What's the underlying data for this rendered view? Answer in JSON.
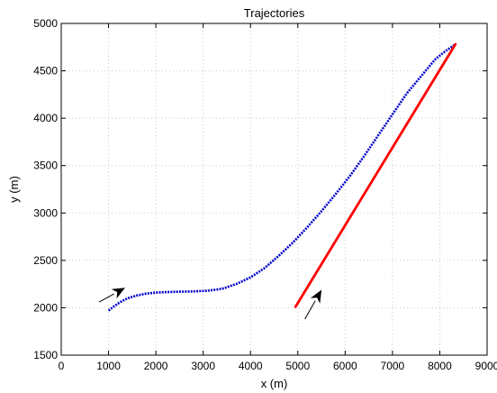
{
  "chart_data": {
    "type": "line",
    "title": "Trajectories",
    "xlabel": "x (m)",
    "ylabel": "y (m)",
    "xlim": [
      0,
      9000
    ],
    "ylim": [
      1500,
      5000
    ],
    "xticks": [
      0,
      1000,
      2000,
      3000,
      4000,
      5000,
      6000,
      7000,
      8000,
      9000
    ],
    "yticks": [
      1500,
      2000,
      2500,
      3000,
      3500,
      4000,
      4500,
      5000
    ],
    "grid": true,
    "series": [
      {
        "color": "#0000cc",
        "style": "dotted-markers",
        "x": [
          1000,
          1100,
          1250,
          1400,
          1600,
          1800,
          2000,
          2200,
          2500,
          2800,
          3100,
          3400,
          3700,
          4000,
          4300,
          4600,
          4900,
          5200,
          5500,
          5800,
          6100,
          6400,
          6700,
          7000,
          7300,
          7600,
          7900,
          8100,
          8330
        ],
        "y": [
          1970,
          2010,
          2060,
          2100,
          2130,
          2150,
          2160,
          2165,
          2170,
          2172,
          2180,
          2200,
          2250,
          2320,
          2420,
          2550,
          2690,
          2850,
          3020,
          3200,
          3390,
          3600,
          3820,
          4040,
          4260,
          4440,
          4620,
          4700,
          4780
        ]
      },
      {
        "color": "#ff0000",
        "style": "solid-thick",
        "x": [
          4950,
          8330
        ],
        "y": [
          2010,
          4780
        ]
      }
    ],
    "annotations": [
      {
        "type": "arrow",
        "from": [
          800,
          2060
        ],
        "to": [
          1350,
          2210
        ]
      },
      {
        "type": "arrow",
        "from": [
          5150,
          1880
        ],
        "to": [
          5500,
          2190
        ]
      }
    ]
  }
}
